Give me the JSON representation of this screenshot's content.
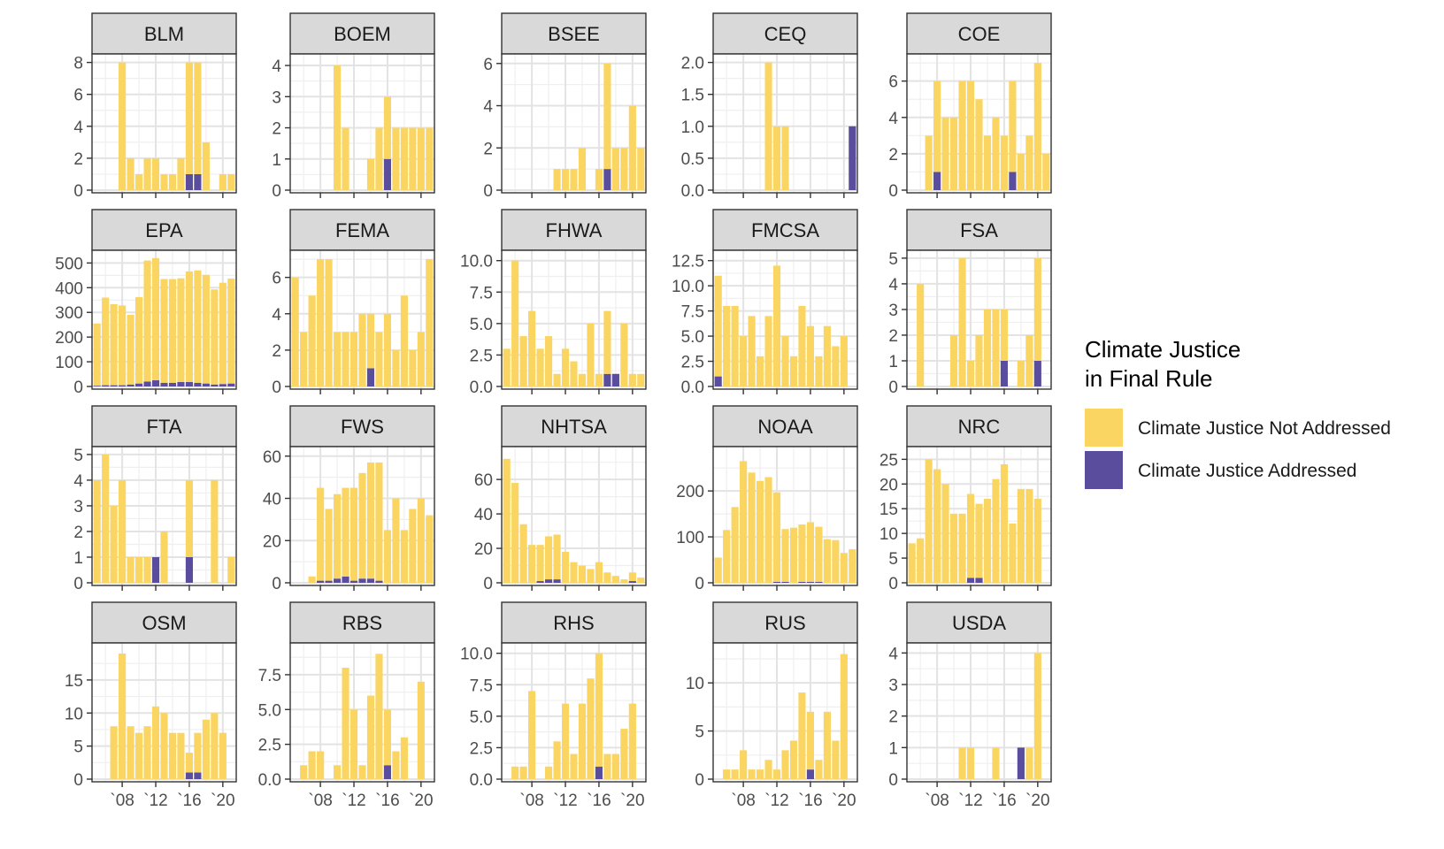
{
  "chart_data": {
    "type": "bar",
    "stacked": true,
    "legend": {
      "title_lines": [
        "Climate Justice",
        "in Final Rule"
      ],
      "entries": [
        {
          "key": "not_addressed",
          "label": "Climate Justice Not Addressed",
          "color": "#FAD562"
        },
        {
          "key": "addressed",
          "label": "Climate Justice Addressed",
          "color": "#5A4D9E"
        }
      ],
      "placement": "right"
    },
    "x": [
      2005,
      2006,
      2007,
      2008,
      2009,
      2010,
      2011,
      2012,
      2013,
      2014,
      2015,
      2016,
      2017,
      2018,
      2019,
      2020,
      2021
    ],
    "x_tick_labels": [
      {
        "x": 2008,
        "label": "`08"
      },
      {
        "x": 2012,
        "label": "`12"
      },
      {
        "x": 2016,
        "label": "`16"
      },
      {
        "x": 2020,
        "label": "`20"
      }
    ],
    "panels": [
      {
        "name": "BLM",
        "ylim": [
          0,
          8.2
        ],
        "yticks": [
          0,
          2,
          4,
          6,
          8
        ],
        "ytick_labels": [
          "0",
          "2",
          "4",
          "6",
          "8"
        ],
        "not_addressed": [
          0,
          0,
          0,
          8,
          2,
          1,
          2,
          2,
          1,
          1,
          2,
          7,
          7,
          3,
          0,
          1,
          1
        ],
        "addressed": [
          0,
          0,
          0,
          0,
          0,
          0,
          0,
          0,
          0,
          0,
          0,
          1,
          1,
          0,
          0,
          0,
          0
        ]
      },
      {
        "name": "BOEM",
        "ylim": [
          0,
          4.2
        ],
        "yticks": [
          0,
          1,
          2,
          3,
          4
        ],
        "ytick_labels": [
          "0",
          "1",
          "2",
          "3",
          "4"
        ],
        "not_addressed": [
          0,
          0,
          0,
          0,
          0,
          4,
          2,
          0,
          0,
          1,
          2,
          2,
          2,
          2,
          2,
          2,
          2
        ],
        "addressed": [
          0,
          0,
          0,
          0,
          0,
          0,
          0,
          0,
          0,
          0,
          0,
          1,
          0,
          0,
          0,
          0,
          0
        ]
      },
      {
        "name": "BSEE",
        "ylim": [
          0,
          6.2
        ],
        "yticks": [
          0,
          2,
          4,
          6
        ],
        "ytick_labels": [
          "0",
          "2",
          "4",
          "6"
        ],
        "not_addressed": [
          0,
          0,
          0,
          0,
          0,
          0,
          1,
          1,
          1,
          2,
          0,
          1,
          5,
          2,
          2,
          4,
          2
        ],
        "addressed": [
          0,
          0,
          0,
          0,
          0,
          0,
          0,
          0,
          0,
          0,
          0,
          0,
          1,
          0,
          0,
          0,
          0
        ]
      },
      {
        "name": "CEQ",
        "ylim": [
          0,
          2.05
        ],
        "yticks": [
          0,
          0.5,
          1,
          1.5,
          2
        ],
        "ytick_labels": [
          "0.0",
          "0.5",
          "1.0",
          "1.5",
          "2.0"
        ],
        "not_addressed": [
          0,
          0,
          0,
          0,
          0,
          0,
          2,
          1,
          1,
          0,
          0,
          0,
          0,
          0,
          0,
          0,
          0
        ],
        "addressed": [
          0,
          0,
          0,
          0,
          0,
          0,
          0,
          0,
          0,
          0,
          0,
          0,
          0,
          0,
          0,
          0,
          1
        ]
      },
      {
        "name": "COE",
        "ylim": [
          0,
          7.2
        ],
        "yticks": [
          0,
          2,
          4,
          6
        ],
        "ytick_labels": [
          "0",
          "2",
          "4",
          "6"
        ],
        "not_addressed": [
          0,
          0,
          3,
          5,
          4,
          4,
          6,
          6,
          5,
          3,
          4,
          3,
          5,
          2,
          3,
          7,
          2
        ],
        "addressed": [
          0,
          0,
          0,
          1,
          0,
          0,
          0,
          0,
          0,
          0,
          0,
          0,
          1,
          0,
          0,
          0,
          0
        ]
      },
      {
        "name": "EPA",
        "ylim": [
          0,
          530
        ],
        "yticks": [
          0,
          100,
          200,
          300,
          400,
          500
        ],
        "ytick_labels": [
          "0",
          "100",
          "200",
          "300",
          "400",
          "500"
        ],
        "not_addressed": [
          252,
          355,
          328,
          323,
          282,
          350,
          490,
          495,
          420,
          420,
          420,
          448,
          455,
          440,
          385,
          410,
          425
        ],
        "addressed": [
          3,
          5,
          5,
          5,
          8,
          12,
          20,
          25,
          15,
          15,
          18,
          18,
          15,
          12,
          8,
          10,
          12
        ]
      },
      {
        "name": "FEMA",
        "ylim": [
          0,
          7.2
        ],
        "yticks": [
          0,
          2,
          4,
          6
        ],
        "ytick_labels": [
          "0",
          "2",
          "4",
          "6"
        ],
        "not_addressed": [
          6,
          3,
          5,
          7,
          7,
          3,
          3,
          3,
          4,
          3,
          3,
          4,
          2,
          5,
          2,
          3,
          7
        ],
        "addressed": [
          0,
          0,
          0,
          0,
          0,
          0,
          0,
          0,
          0,
          1,
          0,
          0,
          0,
          0,
          0,
          0,
          0
        ]
      },
      {
        "name": "FHWA",
        "ylim": [
          0,
          10.4
        ],
        "yticks": [
          0,
          2.5,
          5,
          7.5,
          10
        ],
        "ytick_labels": [
          "0.0",
          "2.5",
          "5.0",
          "7.5",
          "10.0"
        ],
        "not_addressed": [
          3,
          10,
          4,
          6,
          3,
          4,
          1,
          3,
          2,
          1,
          5,
          1,
          5,
          0,
          5,
          1,
          1
        ],
        "addressed": [
          0,
          0,
          0,
          0,
          0,
          0,
          0,
          0,
          0,
          0,
          0,
          0,
          1,
          1,
          0,
          0,
          0
        ]
      },
      {
        "name": "FMCSA",
        "ylim": [
          0,
          13.0
        ],
        "yticks": [
          0,
          2.5,
          5,
          7.5,
          10,
          12.5
        ],
        "ytick_labels": [
          "0.0",
          "2.5",
          "5.0",
          "7.5",
          "10.0",
          "12.5"
        ],
        "not_addressed": [
          10,
          8,
          8,
          5,
          7,
          3,
          7,
          12,
          5,
          3,
          8,
          6,
          3,
          6,
          4,
          5,
          0
        ],
        "addressed": [
          1,
          0,
          0,
          0,
          0,
          0,
          0,
          0,
          0,
          0,
          0,
          0,
          0,
          0,
          0,
          0,
          0
        ]
      },
      {
        "name": "FSA",
        "ylim": [
          0,
          5.1
        ],
        "yticks": [
          0,
          1,
          2,
          3,
          4,
          5
        ],
        "ytick_labels": [
          "0",
          "1",
          "2",
          "3",
          "4",
          "5"
        ],
        "not_addressed": [
          0,
          4,
          0,
          0,
          0,
          2,
          5,
          1,
          2,
          3,
          3,
          2,
          0,
          1,
          2,
          4,
          0
        ],
        "addressed": [
          0,
          0,
          0,
          0,
          0,
          0,
          0,
          0,
          0,
          0,
          0,
          1,
          0,
          0,
          0,
          1,
          0
        ]
      },
      {
        "name": "FTA",
        "ylim": [
          0,
          5.1
        ],
        "yticks": [
          0,
          1,
          2,
          3,
          4,
          5
        ],
        "ytick_labels": [
          "0",
          "1",
          "2",
          "3",
          "4",
          "5"
        ],
        "not_addressed": [
          4,
          5,
          3,
          4,
          1,
          1,
          1,
          0,
          2,
          0,
          0,
          3,
          0,
          0,
          4,
          0,
          1
        ],
        "addressed": [
          0,
          0,
          0,
          0,
          0,
          0,
          0,
          1,
          0,
          0,
          0,
          1,
          0,
          0,
          0,
          0,
          0
        ]
      },
      {
        "name": "FWS",
        "ylim": [
          0,
          62
        ],
        "yticks": [
          0,
          20,
          40,
          60
        ],
        "ytick_labels": [
          "0",
          "20",
          "40",
          "60"
        ],
        "not_addressed": [
          0,
          0,
          3,
          44,
          34,
          40,
          42,
          44,
          50,
          55,
          56,
          25,
          40,
          25,
          35,
          40,
          32
        ],
        "addressed": [
          0,
          0,
          0,
          1,
          1,
          2,
          3,
          1,
          2,
          2,
          1,
          0,
          0,
          0,
          0,
          0,
          0
        ]
      },
      {
        "name": "NHTSA",
        "ylim": [
          0,
          76
        ],
        "yticks": [
          0,
          20,
          40,
          60
        ],
        "ytick_labels": [
          "0",
          "20",
          "40",
          "60"
        ],
        "not_addressed": [
          72,
          58,
          34,
          22,
          21,
          25,
          26,
          18,
          12,
          10,
          8,
          12,
          6,
          4,
          2,
          5,
          3
        ],
        "addressed": [
          0,
          0,
          0,
          0,
          1,
          2,
          2,
          0,
          0,
          0,
          0,
          0,
          0,
          0,
          0,
          1,
          0
        ]
      },
      {
        "name": "NOAA",
        "ylim": [
          0,
          285
        ],
        "yticks": [
          0,
          100,
          200
        ],
        "ytick_labels": [
          "0",
          "100",
          "200"
        ],
        "not_addressed": [
          55,
          115,
          165,
          265,
          240,
          222,
          230,
          195,
          115,
          120,
          125,
          130,
          120,
          95,
          93,
          65,
          73
        ],
        "addressed": [
          0,
          0,
          0,
          0,
          0,
          0,
          0,
          2,
          2,
          0,
          2,
          2,
          2,
          0,
          0,
          0,
          0
        ]
      },
      {
        "name": "NRC",
        "ylim": [
          0,
          26.5
        ],
        "yticks": [
          0,
          5,
          10,
          15,
          20,
          25
        ],
        "ytick_labels": [
          "0",
          "5",
          "10",
          "15",
          "20",
          "25"
        ],
        "not_addressed": [
          8,
          9,
          25,
          23,
          20,
          14,
          14,
          17,
          15,
          17,
          21,
          24,
          12,
          19,
          19,
          17,
          0
        ],
        "addressed": [
          0,
          0,
          0,
          0,
          0,
          0,
          0,
          1,
          1,
          0,
          0,
          0,
          0,
          0,
          0,
          0,
          0
        ]
      },
      {
        "name": "OSM",
        "ylim": [
          0,
          19.8
        ],
        "yticks": [
          0,
          5,
          10,
          15
        ],
        "ytick_labels": [
          "0",
          "5",
          "10",
          "15"
        ],
        "not_addressed": [
          0,
          0,
          8,
          19,
          8,
          7,
          8,
          11,
          10,
          7,
          7,
          3,
          6,
          9,
          10,
          7,
          0
        ],
        "addressed": [
          0,
          0,
          0,
          0,
          0,
          0,
          0,
          0,
          0,
          0,
          0,
          1,
          1,
          0,
          0,
          0,
          0
        ]
      },
      {
        "name": "RBS",
        "ylim": [
          0,
          9.4
        ],
        "yticks": [
          0,
          2.5,
          5,
          7.5
        ],
        "ytick_labels": [
          "0.0",
          "2.5",
          "5.0",
          "7.5"
        ],
        "not_addressed": [
          0,
          1,
          2,
          2,
          0,
          1,
          8,
          5,
          1,
          6,
          9,
          4,
          2,
          3,
          0,
          7,
          0
        ],
        "addressed": [
          0,
          0,
          0,
          0,
          0,
          0,
          0,
          0,
          0,
          0,
          0,
          1,
          0,
          0,
          0,
          0,
          0
        ]
      },
      {
        "name": "RHS",
        "ylim": [
          0,
          10.4
        ],
        "yticks": [
          0,
          2.5,
          5,
          7.5,
          10
        ],
        "ytick_labels": [
          "0.0",
          "2.5",
          "5.0",
          "7.5",
          "10.0"
        ],
        "not_addressed": [
          0,
          1,
          1,
          7,
          0,
          1,
          3,
          6,
          2,
          6,
          8,
          9,
          2,
          2,
          4,
          6,
          0
        ],
        "addressed": [
          0,
          0,
          0,
          0,
          0,
          0,
          0,
          0,
          0,
          0,
          0,
          1,
          0,
          0,
          0,
          0,
          0
        ]
      },
      {
        "name": "RUS",
        "ylim": [
          0,
          13.6
        ],
        "yticks": [
          0,
          5,
          10
        ],
        "ytick_labels": [
          "0",
          "5",
          "10"
        ],
        "not_addressed": [
          0,
          1,
          1,
          3,
          1,
          1,
          2,
          1,
          3,
          4,
          9,
          6,
          2,
          7,
          4,
          13,
          0
        ],
        "addressed": [
          0,
          0,
          0,
          0,
          0,
          0,
          0,
          0,
          0,
          0,
          0,
          1,
          0,
          0,
          0,
          0,
          0
        ]
      },
      {
        "name": "USDA",
        "ylim": [
          0,
          4.15
        ],
        "yticks": [
          0,
          1,
          2,
          3,
          4
        ],
        "ytick_labels": [
          "0",
          "1",
          "2",
          "3",
          "4"
        ],
        "not_addressed": [
          0,
          0,
          0,
          0,
          0,
          0,
          1,
          1,
          0,
          0,
          1,
          0,
          0,
          0,
          1,
          4,
          0
        ],
        "addressed": [
          0,
          0,
          0,
          0,
          0,
          0,
          0,
          0,
          0,
          0,
          0,
          0,
          0,
          1,
          0,
          0,
          0
        ]
      }
    ]
  }
}
